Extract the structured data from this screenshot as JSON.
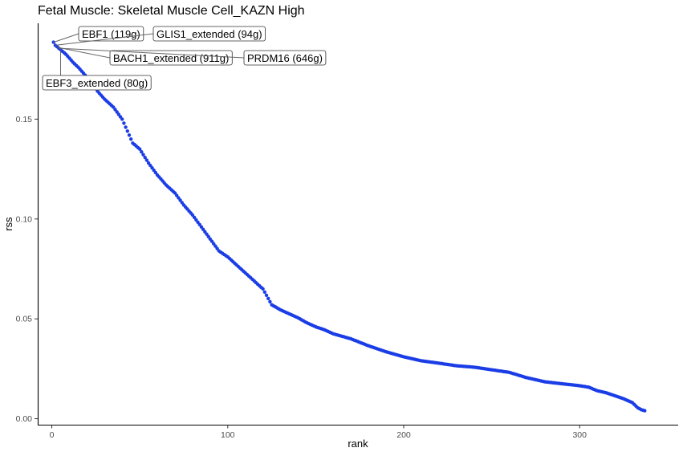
{
  "chart_data": {
    "type": "scatter",
    "title": "Fetal Muscle: Skeletal Muscle Cell_KAZN High",
    "xlabel": "rank",
    "ylabel": "rss",
    "xlim": [
      -8,
      356
    ],
    "ylim": [
      -0.003,
      0.198
    ],
    "xticks": [
      0,
      100,
      200,
      300
    ],
    "xtick_labels": [
      "0",
      "100",
      "200",
      "300"
    ],
    "yticks": [
      0.0,
      0.05,
      0.1,
      0.15
    ],
    "ytick_labels": [
      "0.00",
      "0.05",
      "0.10",
      "0.15"
    ],
    "grid": false,
    "legend": "none",
    "point_color": "#1a3de6",
    "anchors": [
      [
        1,
        0.1885
      ],
      [
        2,
        0.187
      ],
      [
        4,
        0.1855
      ],
      [
        6,
        0.184
      ],
      [
        8,
        0.1825
      ],
      [
        10,
        0.1805
      ],
      [
        12,
        0.1785
      ],
      [
        15,
        0.176
      ],
      [
        18,
        0.173
      ],
      [
        22,
        0.169
      ],
      [
        26,
        0.164
      ],
      [
        30,
        0.16
      ],
      [
        35,
        0.156
      ],
      [
        40,
        0.15
      ],
      [
        43,
        0.144
      ],
      [
        46,
        0.138
      ],
      [
        50,
        0.135
      ],
      [
        55,
        0.128
      ],
      [
        60,
        0.122
      ],
      [
        65,
        0.117
      ],
      [
        70,
        0.113
      ],
      [
        75,
        0.107
      ],
      [
        80,
        0.102
      ],
      [
        85,
        0.096
      ],
      [
        90,
        0.09
      ],
      [
        95,
        0.084
      ],
      [
        100,
        0.081
      ],
      [
        105,
        0.077
      ],
      [
        110,
        0.073
      ],
      [
        115,
        0.069
      ],
      [
        120,
        0.065
      ],
      [
        125,
        0.057
      ],
      [
        130,
        0.0545
      ],
      [
        135,
        0.0525
      ],
      [
        140,
        0.0505
      ],
      [
        145,
        0.048
      ],
      [
        150,
        0.046
      ],
      [
        155,
        0.0445
      ],
      [
        160,
        0.0425
      ],
      [
        170,
        0.04
      ],
      [
        180,
        0.0365
      ],
      [
        190,
        0.0335
      ],
      [
        200,
        0.031
      ],
      [
        210,
        0.029
      ],
      [
        220,
        0.0278
      ],
      [
        230,
        0.0265
      ],
      [
        240,
        0.0258
      ],
      [
        250,
        0.0245
      ],
      [
        260,
        0.0232
      ],
      [
        270,
        0.0205
      ],
      [
        280,
        0.0185
      ],
      [
        290,
        0.0175
      ],
      [
        300,
        0.0165
      ],
      [
        305,
        0.0158
      ],
      [
        310,
        0.014
      ],
      [
        315,
        0.013
      ],
      [
        320,
        0.0115
      ],
      [
        325,
        0.01
      ],
      [
        330,
        0.008
      ],
      [
        333,
        0.0055
      ],
      [
        335,
        0.0045
      ],
      [
        337,
        0.004
      ]
    ],
    "n_points": 337,
    "annotations": [
      {
        "text": "EBF1 (119g)",
        "rank": 1,
        "rss": 0.1885
      },
      {
        "text": "GLIS1_extended (94g)",
        "rank": 2,
        "rss": 0.187
      },
      {
        "text": "BACH1_extended (911g)",
        "rank": 3,
        "rss": 0.186
      },
      {
        "text": "PRDM16 (646g)",
        "rank": 4,
        "rss": 0.1855
      },
      {
        "text": "EBF3_extended (80g)",
        "rank": 5,
        "rss": 0.1845
      }
    ]
  }
}
